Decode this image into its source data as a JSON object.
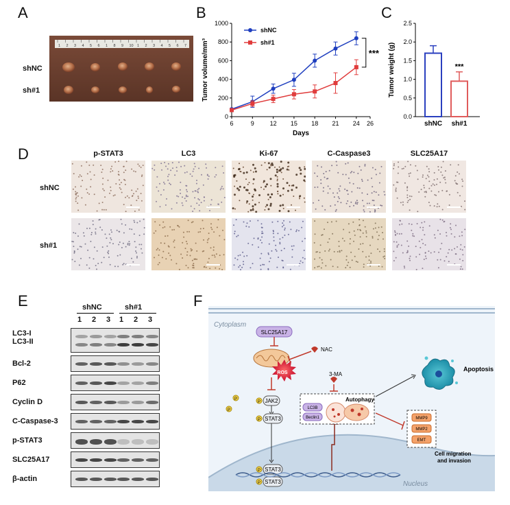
{
  "panels": {
    "A": "A",
    "B": "B",
    "C": "C",
    "D": "D",
    "E": "E",
    "F": "F"
  },
  "panelA": {
    "row_labels": [
      "shNC",
      "sh#1"
    ],
    "ruler_numbers": [
      "1",
      "2",
      "3",
      "4",
      "5",
      "6",
      "1",
      "8",
      "9",
      "10",
      "1",
      "2",
      "3",
      "4",
      "5",
      "6",
      "7"
    ]
  },
  "chart_data": [
    {
      "type": "line",
      "xlabel": "Days",
      "ylabel": "Tumor volume/mm³",
      "x": [
        6,
        9,
        12,
        15,
        18,
        21,
        24
      ],
      "xlim": [
        6,
        26
      ],
      "xticks": [
        6,
        9,
        12,
        15,
        18,
        21,
        24,
        26
      ],
      "ylim": [
        0,
        1000
      ],
      "yticks": [
        0,
        200,
        400,
        600,
        800,
        1000
      ],
      "grid": false,
      "legend": "top-left",
      "significance": "***",
      "series": [
        {
          "name": "shNC",
          "color": "#1f3fbf",
          "marker": "circle",
          "values": [
            80,
            160,
            300,
            395,
            600,
            730,
            840
          ],
          "errors": [
            10,
            60,
            50,
            70,
            70,
            70,
            70
          ]
        },
        {
          "name": "sh#1",
          "color": "#e03c3c",
          "marker": "square",
          "values": [
            70,
            140,
            190,
            240,
            270,
            360,
            530
          ],
          "errors": [
            10,
            30,
            40,
            50,
            70,
            110,
            80
          ]
        }
      ]
    },
    {
      "type": "bar",
      "ylabel": "Tumor weight (g)",
      "categories": [
        "shNC",
        "sh#1"
      ],
      "values": [
        1.7,
        0.95
      ],
      "errors": [
        0.2,
        0.25
      ],
      "ylim": [
        0,
        2.5
      ],
      "yticks": [
        0.0,
        0.5,
        1.0,
        1.5,
        2.0,
        2.5
      ],
      "colors": [
        "#2a3fbf",
        "#e05b5b"
      ],
      "significance": "***",
      "grid": false
    }
  ],
  "panelD": {
    "columns": [
      "p-STAT3",
      "LC3",
      "Ki-67",
      "C-Caspase3",
      "SLC25A17"
    ],
    "rows": [
      "shNC",
      "sh#1"
    ]
  },
  "panelE": {
    "group_labels": [
      "shNC",
      "sh#1"
    ],
    "lane_numbers": [
      "1",
      "2",
      "3",
      "1",
      "2",
      "3"
    ],
    "rows": [
      "LC3-I",
      "LC3-II",
      "Bcl-2",
      "P62",
      "Cyclin D",
      "C-Caspase-3",
      "p-STAT3",
      "SLC25A17",
      "β-actin"
    ]
  },
  "panelF": {
    "cytoplasm": "Cytoplasm",
    "nucleus": "Nucleus",
    "slc": "SLC25A17",
    "nac": "NAC",
    "ros": "ROS",
    "p": "P",
    "jak2": "JAK2",
    "stat3": "STAT3",
    "threema": "3-MA",
    "autophagy": "Autophagy",
    "lc3b": "LC3B",
    "beclin": "Beclin1",
    "apoptosis": "Apoptosis",
    "mmp9": "MMP9",
    "mmp2": "MMP2",
    "emt": "EMT",
    "migration1": "Cell migration",
    "migration2": "and invasion"
  }
}
